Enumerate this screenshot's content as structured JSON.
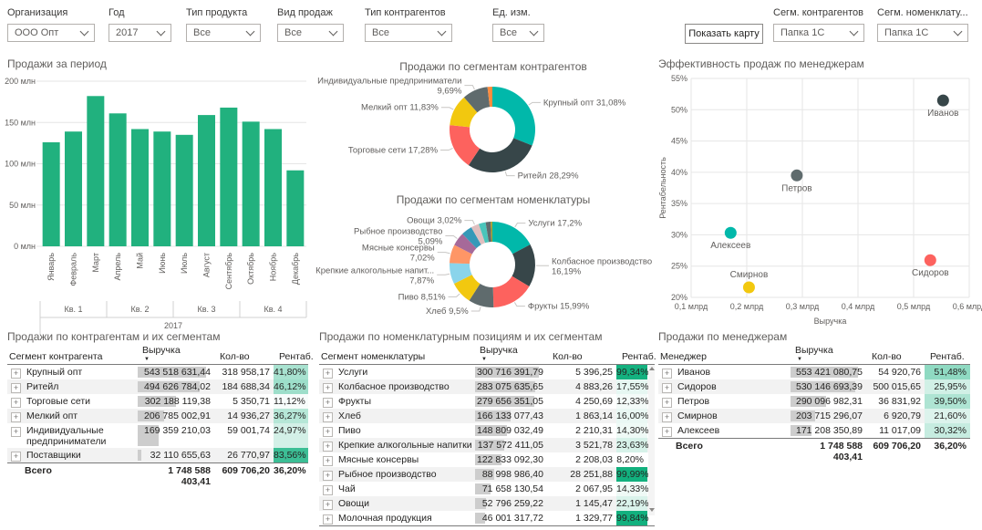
{
  "filters": {
    "items": [
      {
        "label": "Организация",
        "value": "ООО Опт"
      },
      {
        "label": "Год",
        "value": "2017"
      },
      {
        "label": "Тип продукта",
        "value": "Все"
      },
      {
        "label": "Вид продаж",
        "value": "Все"
      },
      {
        "label": "Тип контрагентов",
        "value": "Все"
      },
      {
        "label": "Ед. изм.",
        "value": "Все"
      },
      {
        "label": "Сегм. контрагентов",
        "value": "Папка 1С"
      },
      {
        "label": "Сегм. номенклату...",
        "value": "Папка 1С"
      }
    ],
    "map_button": "Показать карту"
  },
  "chart_data": [
    {
      "type": "bar",
      "title": "Продажи за период",
      "categories": [
        "Январь",
        "Февраль",
        "Март",
        "Апрель",
        "Май",
        "Июнь",
        "Июль",
        "Август",
        "Сентябрь",
        "Октябрь",
        "Ноябрь",
        "Декабрь"
      ],
      "values": [
        126,
        139,
        182,
        161,
        142,
        139,
        135,
        159,
        168,
        151,
        142,
        92
      ],
      "quarters": [
        "Кв. 1",
        "Кв. 2",
        "Кв. 3",
        "Кв. 4"
      ],
      "year": "2017",
      "y_ticks": [
        "0 млн",
        "50 млн",
        "100 млн",
        "150 млн",
        "200 млн"
      ],
      "ylim": [
        0,
        200
      ],
      "bar_color": "#21B17E"
    },
    {
      "type": "pie",
      "title": "Продажи по сегментам контрагентов",
      "slices": [
        {
          "label": "Крупный опт",
          "pct": "31,08%",
          "value": 31.08,
          "color": "#01B8AA",
          "labeled": true
        },
        {
          "label": "Ритейл",
          "pct": "28,29%",
          "value": 28.29,
          "color": "#374649",
          "labeled": true
        },
        {
          "label": "Торговые сети",
          "pct": "17,28%",
          "value": 17.28,
          "color": "#FD625E",
          "labeled": true
        },
        {
          "label": "Мелкий опт",
          "pct": "11,83%",
          "value": 11.83,
          "color": "#F2C80F",
          "labeled": true
        },
        {
          "label": "Индивидуальные предприниматели",
          "pct": "9,69%",
          "value": 9.69,
          "color": "#5F6B6D",
          "labeled": true
        },
        {
          "label": "",
          "pct": "",
          "value": 1.83,
          "color": "#FD8C3E",
          "labeled": false
        }
      ]
    },
    {
      "type": "pie",
      "title": "Продажи по сегментам номенклатуры",
      "slices": [
        {
          "label": "Услуги",
          "pct": "17,2%",
          "value": 17.2,
          "color": "#01B8AA",
          "labeled": true
        },
        {
          "label": "Колбасное производство",
          "pct": "16,19%",
          "value": 16.19,
          "color": "#374649",
          "labeled": true
        },
        {
          "label": "Фрукты",
          "pct": "15,99%",
          "value": 15.99,
          "color": "#FD625E",
          "labeled": true
        },
        {
          "label": "Хлеб",
          "pct": "9,5%",
          "value": 9.5,
          "color": "#5F6B6D",
          "labeled": true
        },
        {
          "label": "Пиво",
          "pct": "8,51%",
          "value": 8.51,
          "color": "#F2C80F",
          "labeled": true
        },
        {
          "label": "Крепкие алкогольные напит...",
          "pct": "7,87%",
          "value": 7.87,
          "color": "#8AD4EB",
          "labeled": true
        },
        {
          "label": "Мясные консервы",
          "pct": "7,02%",
          "value": 7.02,
          "color": "#FE9666",
          "labeled": true
        },
        {
          "label": "Рыбное производство",
          "pct": "5,09%",
          "value": 5.09,
          "color": "#A66999",
          "labeled": true
        },
        {
          "label": "",
          "pct": "",
          "value": 4.1,
          "color": "#3599B8",
          "labeled": false
        },
        {
          "label": "Овощи",
          "pct": "3,02%",
          "value": 3.02,
          "color": "#DFBFBF",
          "labeled": true
        },
        {
          "label": "",
          "pct": "",
          "value": 2.63,
          "color": "#4AC5BB",
          "labeled": false
        },
        {
          "label": "",
          "pct": "",
          "value": 1.9,
          "color": "#5F6B6D",
          "labeled": false
        },
        {
          "label": "",
          "pct": "",
          "value": 0.62,
          "color": "#ACA02B",
          "labeled": false
        }
      ]
    },
    {
      "type": "scatter",
      "title": "Эффективность продаж по менеджерам",
      "xlabel": "Выручка",
      "ylabel": "Рентабельность",
      "x_ticks": [
        "0,1 млрд",
        "0,2 млрд",
        "0,3 млрд",
        "0,4 млрд",
        "0,5 млрд",
        "0,6 млрд"
      ],
      "y_ticks": [
        "20%",
        "25%",
        "30%",
        "35%",
        "40%",
        "45%",
        "50%",
        "55%"
      ],
      "xlim": [
        0.1,
        0.6
      ],
      "ylim": [
        20,
        55
      ],
      "points": [
        {
          "label": "Иванов",
          "x": 0.553,
          "y": 51.48,
          "color": "#374649",
          "label_above": false
        },
        {
          "label": "Сидоров",
          "x": 0.53,
          "y": 25.95,
          "color": "#FD625E",
          "label_above": false
        },
        {
          "label": "Петров",
          "x": 0.29,
          "y": 39.5,
          "color": "#5F6B6D",
          "label_above": false
        },
        {
          "label": "Смирнов",
          "x": 0.204,
          "y": 21.6,
          "color": "#F2C80F",
          "label_above": true
        },
        {
          "label": "Алексеев",
          "x": 0.171,
          "y": 30.32,
          "color": "#01B8AA",
          "label_above": false
        }
      ]
    },
    {
      "type": "table",
      "title": "Продажи по контрагентам и их сегментам",
      "columns": [
        "Сегмент контрагента",
        "Выручка",
        "Кол-во",
        "Рентаб."
      ],
      "rows": [
        {
          "name": "Крупный опт",
          "revenue": "543 518 631,44",
          "qty": "318 958,17",
          "margin": "41,80%"
        },
        {
          "name": "Ритейл",
          "revenue": "494 626 784,02",
          "qty": "184 688,34",
          "margin": "46,12%"
        },
        {
          "name": "Торговые сети",
          "revenue": "302 188 119,38",
          "qty": "5 350,71",
          "margin": "11,12%"
        },
        {
          "name": "Мелкий опт",
          "revenue": "206 785 002,91",
          "qty": "14 936,27",
          "margin": "36,27%"
        },
        {
          "name": "Индивидуальные предприниматели",
          "revenue": "169 359 210,03",
          "qty": "59 001,74",
          "margin": "24,97%"
        },
        {
          "name": "Поставщики",
          "revenue": "32 110 655,63",
          "qty": "26 770,97",
          "margin": "83,56%"
        }
      ],
      "total": {
        "name": "Всего",
        "revenue": "1 748 588 403,41",
        "qty": "609 706,20",
        "margin": "36,20%"
      }
    },
    {
      "type": "table",
      "title": "Продажи по номенклатурным позициям и их сегментам",
      "columns": [
        "Сегмент номенклатуры",
        "Выручка",
        "Кол-во",
        "Рентаб."
      ],
      "rows": [
        {
          "name": "Услуги",
          "revenue": "300 716 391,79",
          "qty": "5 396,25",
          "margin": "99,34%"
        },
        {
          "name": "Колбасное производство",
          "revenue": "283 075 635,65",
          "qty": "4 883,26",
          "margin": "17,55%"
        },
        {
          "name": "Фрукты",
          "revenue": "279 656 351,05",
          "qty": "4 250,69",
          "margin": "12,33%"
        },
        {
          "name": "Хлеб",
          "revenue": "166 133 077,43",
          "qty": "1 863,14",
          "margin": "16,00%"
        },
        {
          "name": "Пиво",
          "revenue": "148 809 032,49",
          "qty": "2 210,31",
          "margin": "14,30%"
        },
        {
          "name": "Крепкие алкогольные напитки",
          "revenue": "137 572 411,05",
          "qty": "3 521,78",
          "margin": "23,63%"
        },
        {
          "name": "Мясные консервы",
          "revenue": "122 833 092,30",
          "qty": "2 208,03",
          "margin": "8,20%"
        },
        {
          "name": "Рыбное производство",
          "revenue": "88 998 986,40",
          "qty": "28 251,88",
          "margin": "99,99%"
        },
        {
          "name": "Чай",
          "revenue": "71 658 130,54",
          "qty": "2 067,95",
          "margin": "14,33%"
        },
        {
          "name": "Овощи",
          "revenue": "52 796 259,22",
          "qty": "1 145,47",
          "margin": "22,19%"
        },
        {
          "name": "Молочная продукция",
          "revenue": "46 001 317,72",
          "qty": "1 329,77",
          "margin": "99,84%"
        }
      ],
      "total": {
        "name": "Всего",
        "revenue": "1 748 588 403,41",
        "qty": "609 706,20",
        "margin": "36,20%"
      },
      "scrollbar": true
    },
    {
      "type": "table",
      "title": "Продажи по менеджерам",
      "columns": [
        "Менеджер",
        "Выручка",
        "Кол-во",
        "Рентаб."
      ],
      "rows": [
        {
          "name": "Иванов",
          "revenue": "553 421 080,75",
          "qty": "54 920,76",
          "margin": "51,48%"
        },
        {
          "name": "Сидоров",
          "revenue": "530 146 693,39",
          "qty": "500 015,65",
          "margin": "25,95%"
        },
        {
          "name": "Петров",
          "revenue": "290 096 982,31",
          "qty": "36 831,92",
          "margin": "39,50%"
        },
        {
          "name": "Смирнов",
          "revenue": "203 715 296,07",
          "qty": "6 920,79",
          "margin": "21,60%"
        },
        {
          "name": "Алексеев",
          "revenue": "171 208 350,89",
          "qty": "11 017,09",
          "margin": "30,32%"
        }
      ],
      "total": {
        "name": "Всего",
        "revenue": "1 748 588 403,41",
        "qty": "609 706,20",
        "margin": "36,20%"
      }
    }
  ],
  "colors": {
    "accent_green": "#21B17E",
    "margin_scale_max": "#12B07E",
    "axis_text": "#605E5C",
    "gridline": "#E6E6E6",
    "databar_gray": "#CDCDCD"
  }
}
